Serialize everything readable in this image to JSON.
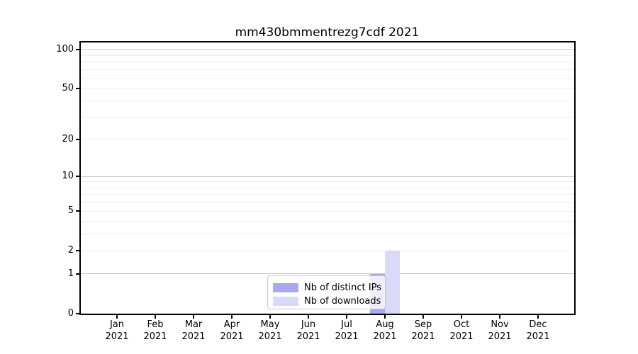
{
  "title": "mm430bmmentrezg7cdf 2021",
  "chart_data": {
    "type": "bar",
    "title": "mm430bmmentrezg7cdf 2021",
    "categories": [
      "Jan 2021",
      "Feb 2021",
      "Mar 2021",
      "Apr 2021",
      "May 2021",
      "Jun 2021",
      "Jul 2021",
      "Aug 2021",
      "Sep 2021",
      "Oct 2021",
      "Nov 2021",
      "Dec 2021"
    ],
    "x_tick_months": [
      "Jan",
      "Feb",
      "Mar",
      "Apr",
      "May",
      "Jun",
      "Jul",
      "Aug",
      "Sep",
      "Oct",
      "Nov",
      "Dec"
    ],
    "x_tick_year": "2021",
    "series": [
      {
        "name": "Nb of distinct IPs",
        "color": "#a9a9ef",
        "values": [
          0,
          0,
          0,
          0,
          0,
          0,
          0,
          1,
          0,
          0,
          0,
          0
        ]
      },
      {
        "name": "Nb of downloads",
        "color": "#d9d9f8",
        "values": [
          0,
          0,
          0,
          0,
          0,
          0,
          0,
          2,
          0,
          0,
          0,
          0
        ]
      }
    ],
    "yscale": "log10(1+x)",
    "yticks": [
      0,
      1,
      2,
      5,
      10,
      20,
      50,
      100
    ],
    "ylim": [
      0,
      115
    ],
    "grid": {
      "major_values": [
        1,
        10,
        100
      ],
      "minor_values": [
        2,
        3,
        4,
        5,
        6,
        7,
        8,
        9,
        20,
        30,
        40,
        50,
        60,
        70,
        80,
        90
      ],
      "major_color": "#c9c9c9",
      "minor_color": "#ededed"
    },
    "legend": {
      "position": "lower center",
      "items": [
        "Nb of distinct IPs",
        "Nb of downloads"
      ]
    },
    "axis_color": "#000000",
    "background_color": "#ffffff"
  }
}
